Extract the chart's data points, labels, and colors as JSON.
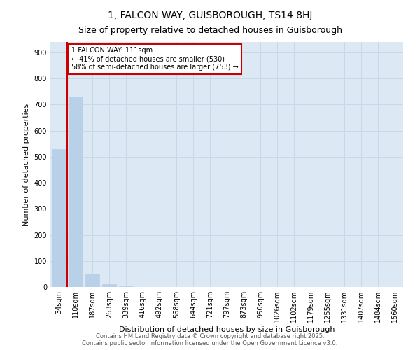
{
  "title": "1, FALCON WAY, GUISBOROUGH, TS14 8HJ",
  "subtitle": "Size of property relative to detached houses in Guisborough",
  "xlabel": "Distribution of detached houses by size in Guisborough",
  "ylabel": "Number of detached properties",
  "categories": [
    "34sqm",
    "110sqm",
    "187sqm",
    "263sqm",
    "339sqm",
    "416sqm",
    "492sqm",
    "568sqm",
    "644sqm",
    "721sqm",
    "797sqm",
    "873sqm",
    "950sqm",
    "1026sqm",
    "1102sqm",
    "1179sqm",
    "1255sqm",
    "1331sqm",
    "1407sqm",
    "1484sqm",
    "1560sqm"
  ],
  "values": [
    530,
    730,
    50,
    10,
    2,
    0,
    0,
    0,
    0,
    0,
    0,
    0,
    0,
    0,
    0,
    0,
    0,
    0,
    0,
    0,
    0
  ],
  "bar_color": "#b8d0e8",
  "bar_edge_color": "#b8d0e8",
  "grid_color": "#c8d8e8",
  "background_color": "#dce8f4",
  "annotation_text": "1 FALCON WAY: 111sqm\n← 41% of detached houses are smaller (530)\n58% of semi-detached houses are larger (753) →",
  "annotation_box_color": "#ffffff",
  "annotation_border_color": "#cc0000",
  "vline_color": "#cc0000",
  "ylim": [
    0,
    940
  ],
  "yticks": [
    0,
    100,
    200,
    300,
    400,
    500,
    600,
    700,
    800,
    900
  ],
  "footer": "Contains HM Land Registry data © Crown copyright and database right 2025.\nContains public sector information licensed under the Open Government Licence v3.0.",
  "title_fontsize": 10,
  "subtitle_fontsize": 9,
  "tick_fontsize": 7,
  "label_fontsize": 8,
  "annotation_fontsize": 7,
  "footer_fontsize": 6
}
